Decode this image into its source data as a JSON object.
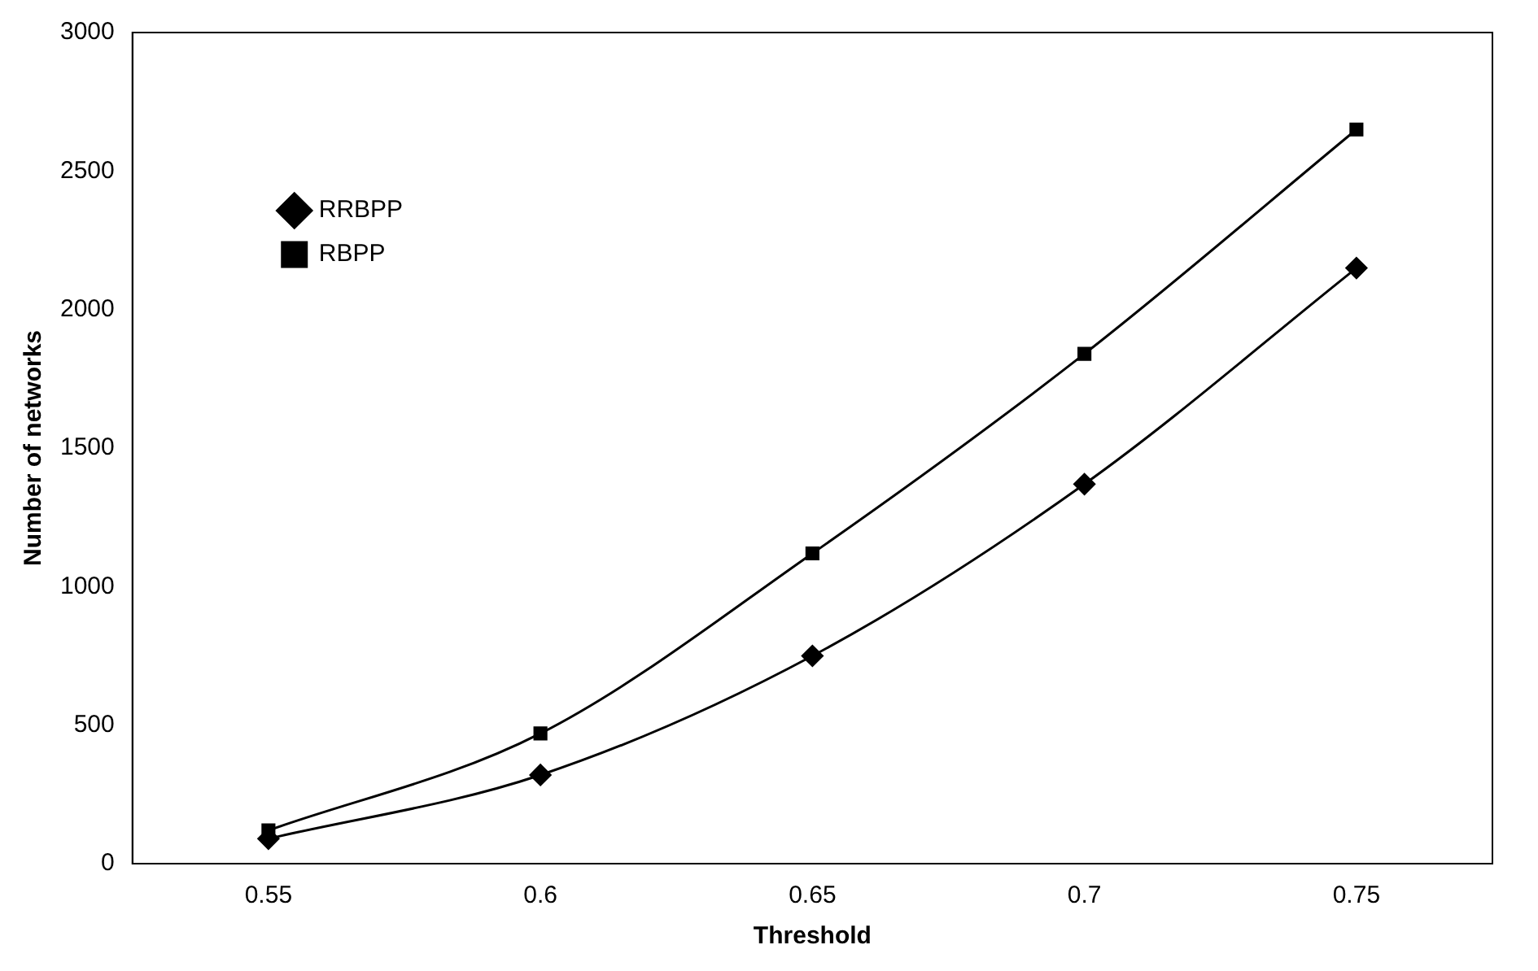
{
  "chart_data": {
    "type": "line",
    "xlabel": "Threshold",
    "ylabel": "Number of networks",
    "categories": [
      "0.55",
      "0.6",
      "0.65",
      "0.7",
      "0.75"
    ],
    "series": [
      {
        "name": "RRBPP",
        "color": "#000000",
        "marker": "diamond",
        "values": [
          90,
          320,
          750,
          1370,
          2150
        ]
      },
      {
        "name": "RBPP",
        "color": "#000000",
        "marker": "square",
        "values": [
          120,
          470,
          1120,
          1840,
          2650
        ]
      }
    ],
    "ylim": [
      0,
      3000
    ],
    "yticks": [
      0,
      500,
      1000,
      1500,
      2000,
      2500,
      3000
    ],
    "grid": false,
    "legend": "top left"
  }
}
